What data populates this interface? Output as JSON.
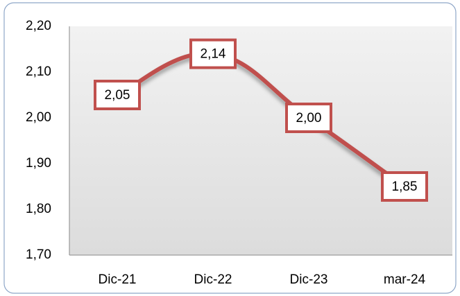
{
  "chart_data": {
    "type": "line",
    "categories": [
      "Dic-21",
      "Dic-22",
      "Dic-23",
      "mar-24"
    ],
    "series": [
      {
        "name": null,
        "color": "#c0504d",
        "values": [
          2.05,
          2.14,
          2.0,
          1.85
        ],
        "value_labels": [
          "2,05",
          "2,14",
          "2,00",
          "1,85"
        ]
      }
    ],
    "ylim": [
      1.7,
      2.2
    ],
    "yticks": [
      {
        "value": 1.7,
        "label": "1,70"
      },
      {
        "value": 1.8,
        "label": "1,80"
      },
      {
        "value": 1.9,
        "label": "1,90"
      },
      {
        "value": 2.0,
        "label": "2,00"
      },
      {
        "value": 2.1,
        "label": "2,10"
      },
      {
        "value": 2.2,
        "label": "2,20"
      }
    ],
    "grid": false
  }
}
